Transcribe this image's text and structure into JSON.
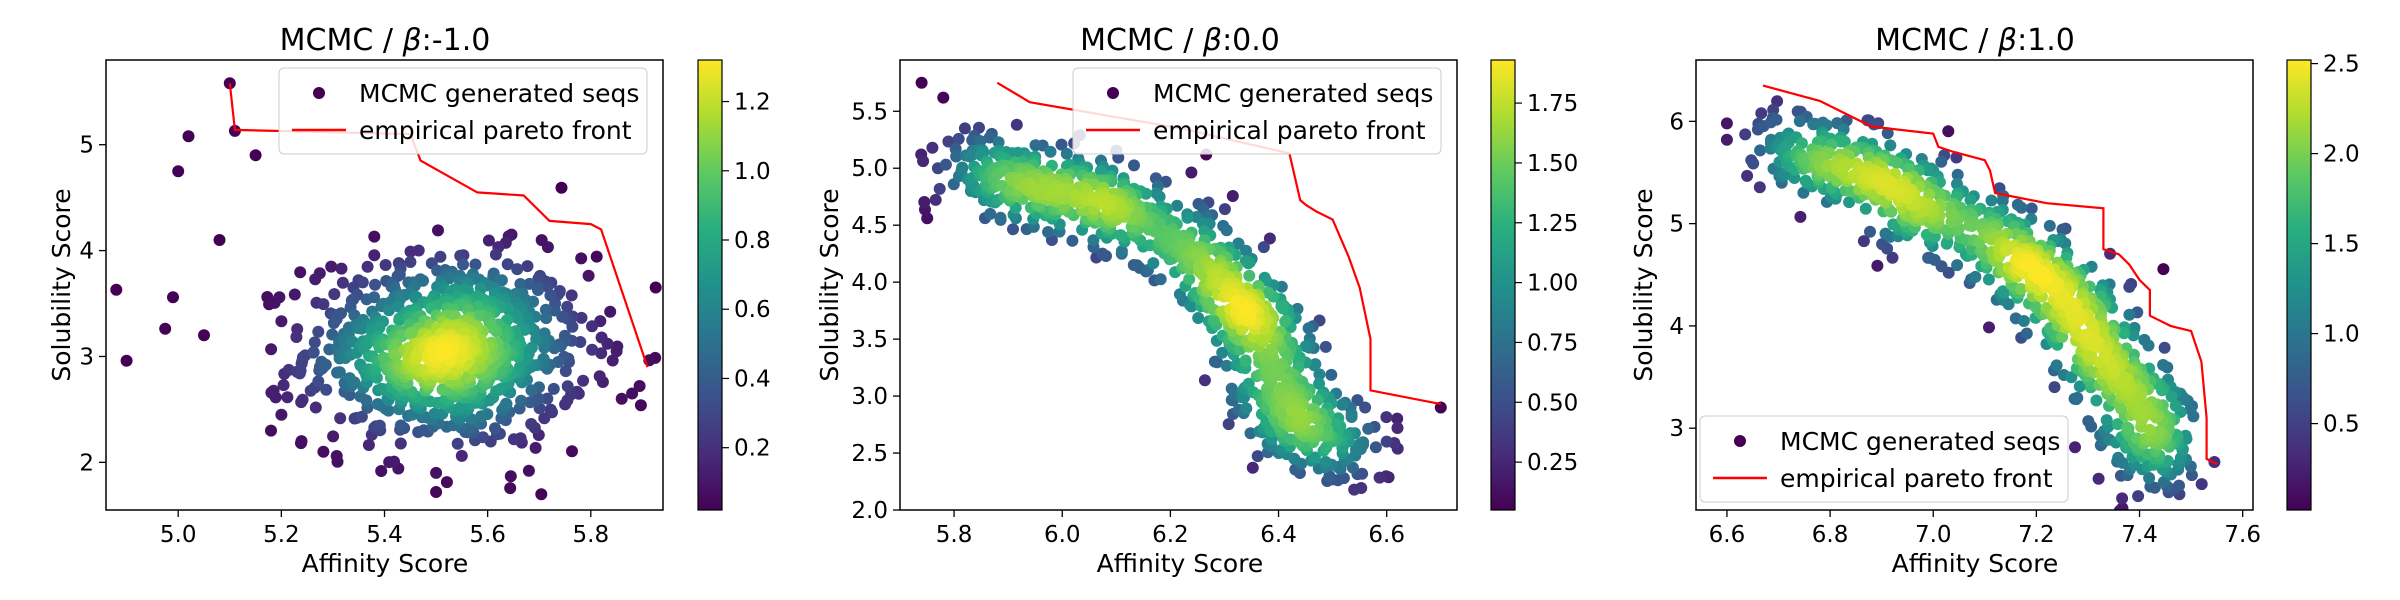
{
  "chart_data": [
    {
      "type": "scatter",
      "title": "MCMC / β:-1.0",
      "title_prefix": "MCMC / ",
      "title_symbol": "β",
      "title_suffix": ":-1.0",
      "xlabel": "Affinity Score",
      "ylabel": "Solubility Score",
      "xlim": [
        4.86,
        5.94
      ],
      "ylim": [
        1.55,
        5.8
      ],
      "xticks": [
        5.0,
        5.2,
        5.4,
        5.6,
        5.8
      ],
      "xtick_labels": [
        "5.0",
        "5.2",
        "5.4",
        "5.6",
        "5.8"
      ],
      "yticks": [
        2,
        3,
        4,
        5
      ],
      "ytick_labels": [
        "2",
        "3",
        "4",
        "5"
      ],
      "colorbar": {
        "label": "",
        "range": [
          0.02,
          1.32
        ],
        "ticks": [
          0.2,
          0.4,
          0.6,
          0.8,
          1.0,
          1.2
        ],
        "tick_labels": [
          "0.2",
          "0.4",
          "0.6",
          "0.8",
          "1.0",
          "1.2"
        ],
        "colormap": "viridis"
      },
      "legend": {
        "placement": "upper right",
        "entries": [
          {
            "label": "MCMC generated seqs",
            "marker": "dot"
          },
          {
            "label": "empirical pareto front",
            "marker": "line"
          }
        ]
      },
      "series": [
        {
          "name": "MCMC generated seqs",
          "kind": "density-colored scatter",
          "cloud": {
            "center": [
              5.52,
              3.05
            ],
            "spread": [
              0.18,
              0.6
            ],
            "count": 900
          },
          "outliers": [
            [
              4.88,
              3.63
            ],
            [
              4.9,
              2.96
            ],
            [
              5.0,
              4.75
            ],
            [
              5.02,
              5.08
            ],
            [
              4.99,
              3.56
            ],
            [
              5.05,
              3.2
            ],
            [
              5.08,
              4.1
            ],
            [
              5.1,
              5.58
            ],
            [
              5.11,
              5.13
            ],
            [
              5.15,
              4.9
            ],
            [
              5.18,
              2.3
            ],
            [
              5.2,
              2.45
            ],
            [
              5.5,
              1.9
            ],
            [
              5.5,
              1.72
            ],
            [
              5.68,
              1.92
            ],
            [
              5.88,
              2.65
            ],
            [
              5.86,
              2.6
            ],
            [
              5.85,
              3.05
            ]
          ]
        },
        {
          "name": "empirical pareto front",
          "color": "#ff0000",
          "x": [
            5.1,
            5.11,
            5.45,
            5.47,
            5.58,
            5.67,
            5.72,
            5.8,
            5.82,
            5.91
          ],
          "y": [
            5.58,
            5.14,
            5.1,
            4.85,
            4.55,
            4.52,
            4.28,
            4.25,
            4.2,
            2.9
          ]
        }
      ]
    },
    {
      "type": "scatter",
      "title": "MCMC / β:0.0",
      "title_prefix": "MCMC / ",
      "title_symbol": "β",
      "title_suffix": ":0.0",
      "xlabel": "Affinity Score",
      "ylabel": "Solubility Score",
      "xlim": [
        5.7,
        6.73
      ],
      "ylim": [
        2.0,
        5.95
      ],
      "xticks": [
        5.8,
        6.0,
        6.2,
        6.4,
        6.6
      ],
      "xtick_labels": [
        "5.8",
        "6.0",
        "6.2",
        "6.4",
        "6.6"
      ],
      "yticks": [
        2.0,
        2.5,
        3.0,
        3.5,
        4.0,
        4.5,
        5.0,
        5.5
      ],
      "ytick_labels": [
        "2.0",
        "2.5",
        "3.0",
        "3.5",
        "4.0",
        "4.5",
        "5.0",
        "5.5"
      ],
      "colorbar": {
        "label": "",
        "range": [
          0.05,
          1.93
        ],
        "ticks": [
          0.25,
          0.5,
          0.75,
          1.0,
          1.25,
          1.5,
          1.75
        ],
        "tick_labels": [
          "0.25",
          "0.50",
          "0.75",
          "1.00",
          "1.25",
          "1.50",
          "1.75"
        ],
        "colormap": "viridis"
      },
      "legend": {
        "placement": "upper right",
        "entries": [
          {
            "label": "MCMC generated seqs",
            "marker": "dot"
          },
          {
            "label": "empirical pareto front",
            "marker": "line"
          }
        ]
      },
      "series": [
        {
          "name": "MCMC generated seqs",
          "kind": "density-colored scatter",
          "curve": [
            [
              5.8,
              4.95
            ],
            [
              6.0,
              4.85
            ],
            [
              6.15,
              4.55
            ],
            [
              6.27,
              4.2
            ],
            [
              6.34,
              3.8
            ],
            [
              6.38,
              3.3
            ],
            [
              6.42,
              2.8
            ],
            [
              6.55,
              2.5
            ]
          ],
          "curve_spread": 0.035,
          "count": 1000,
          "outliers": [
            [
              5.74,
              5.75
            ],
            [
              5.78,
              5.62
            ],
            [
              5.76,
              5.18
            ],
            [
              5.77,
              5.0
            ],
            [
              5.82,
              5.35
            ],
            [
              5.95,
              5.1
            ],
            [
              6.56,
              2.9
            ],
            [
              6.6,
              2.6
            ],
            [
              6.58,
              2.55
            ],
            [
              6.7,
              2.9
            ],
            [
              6.62,
              2.72
            ]
          ]
        },
        {
          "name": "empirical pareto front",
          "color": "#ff0000",
          "x": [
            5.88,
            5.94,
            6.22,
            6.42,
            6.44,
            6.45,
            6.47,
            6.5,
            6.53,
            6.55,
            6.57,
            6.57,
            6.7
          ],
          "y": [
            5.75,
            5.58,
            5.35,
            5.13,
            4.72,
            4.68,
            4.62,
            4.55,
            4.22,
            3.95,
            3.5,
            3.05,
            2.93
          ]
        }
      ]
    },
    {
      "type": "scatter",
      "title": "MCMC / β:1.0",
      "title_prefix": "MCMC / ",
      "title_symbol": "β",
      "title_suffix": ":1.0",
      "xlabel": "Affinity Score",
      "ylabel": "Solubility Score",
      "xlim": [
        6.54,
        7.62
      ],
      "ylim": [
        2.2,
        6.6
      ],
      "xticks": [
        6.6,
        6.8,
        7.0,
        7.2,
        7.4,
        7.6
      ],
      "xtick_labels": [
        "6.6",
        "6.8",
        "7.0",
        "7.2",
        "7.4",
        "7.6"
      ],
      "yticks": [
        3,
        4,
        5,
        6
      ],
      "ytick_labels": [
        "3",
        "4",
        "5",
        "6"
      ],
      "colorbar": {
        "label": "",
        "range": [
          0.02,
          2.52
        ],
        "ticks": [
          0.5,
          1.0,
          1.5,
          2.0,
          2.5
        ],
        "tick_labels": [
          "0.5",
          "1.0",
          "1.5",
          "2.0",
          "2.5"
        ],
        "colormap": "viridis"
      },
      "legend": {
        "placement": "lower left",
        "entries": [
          {
            "label": "MCMC generated seqs",
            "marker": "dot"
          },
          {
            "label": "empirical pareto front",
            "marker": "line"
          }
        ]
      },
      "series": [
        {
          "name": "MCMC generated seqs",
          "kind": "density-colored scatter",
          "curve": [
            [
              6.68,
              5.75
            ],
            [
              6.85,
              5.55
            ],
            [
              7.0,
              5.15
            ],
            [
              7.15,
              4.75
            ],
            [
              7.28,
              4.1
            ],
            [
              7.35,
              3.6
            ],
            [
              7.42,
              3.05
            ],
            [
              7.44,
              2.5
            ]
          ],
          "curve_spread": 0.035,
          "count": 1000,
          "outliers": [
            [
              6.6,
              5.98
            ],
            [
              6.6,
              5.82
            ],
            [
              6.66,
              5.92
            ],
            [
              6.7,
              5.75
            ]
          ]
        },
        {
          "name": "empirical pareto front",
          "color": "#ff0000",
          "x": [
            6.67,
            6.78,
            6.88,
            7.0,
            7.01,
            7.04,
            7.1,
            7.11,
            7.12,
            7.22,
            7.33,
            7.33,
            7.36,
            7.38,
            7.4,
            7.42,
            7.42,
            7.46,
            7.5,
            7.52,
            7.53,
            7.53,
            7.55
          ],
          "y": [
            6.35,
            6.2,
            5.95,
            5.88,
            5.75,
            5.7,
            5.62,
            5.52,
            5.3,
            5.2,
            5.15,
            4.75,
            4.7,
            4.6,
            4.45,
            4.35,
            4.1,
            4.0,
            3.95,
            3.65,
            3.1,
            2.7,
            2.65
          ]
        }
      ]
    }
  ]
}
